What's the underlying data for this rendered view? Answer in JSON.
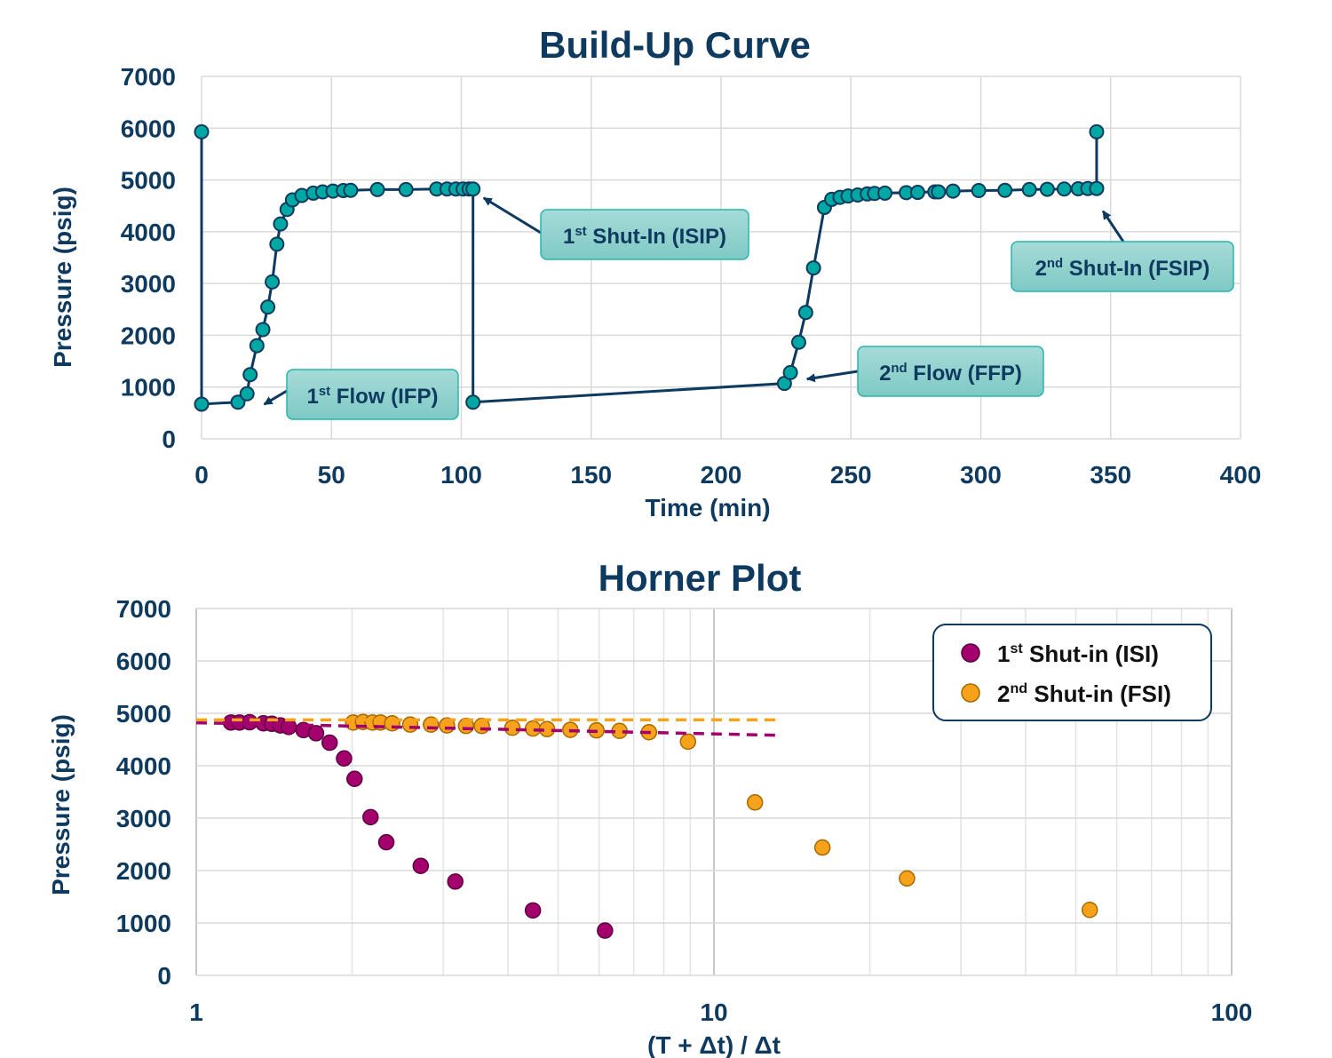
{
  "colors": {
    "navy": "#0e3a5f",
    "teal": "#00a8a3",
    "purple": "#a3006d",
    "orange": "#f7a21b",
    "callout_fill": "#93d2cf",
    "callout_border": "#2ab5ad",
    "grid": "#d9d9d9"
  },
  "chart_data": [
    {
      "type": "line",
      "title": "Build-Up Curve",
      "xlabel": "Time (min)",
      "ylabel": "Pressure (psig)",
      "xlim": [
        0,
        400
      ],
      "ylim": [
        0,
        7000
      ],
      "xticks": [
        "0",
        "50",
        "100",
        "150",
        "200",
        "250",
        "300",
        "350",
        "400"
      ],
      "yticks": [
        "0",
        "1000",
        "2000",
        "3000",
        "4000",
        "5000",
        "6000",
        "7000"
      ],
      "grid": true,
      "marker": "circle",
      "series": [
        {
          "x": [
            0,
            0,
            14,
            17.5,
            18.7,
            21.3,
            23.6,
            25.5,
            27.2,
            29,
            30.4,
            32.9,
            35,
            38.6,
            43,
            46.6,
            50.6,
            54.6,
            57.4,
            67.7,
            78.7,
            90.5,
            94.5,
            97.9,
            100.7,
            103,
            104.5,
            104.5,
            224.4,
            226.7,
            229.9,
            232.6,
            235.6,
            239.8,
            242.6,
            245.8,
            248.9,
            252.6,
            256.3,
            259.1,
            263.1,
            271.3,
            275.7,
            282.3,
            283.7,
            289.3,
            299.2,
            309.3,
            318.7,
            325.6,
            332.1,
            337.5,
            341.2,
            344.6,
            344.6
          ],
          "y": [
            5930,
            670,
            708,
            870,
            1240,
            1800,
            2110,
            2545,
            3030,
            3760,
            4150,
            4430,
            4615,
            4700,
            4745,
            4770,
            4785,
            4795,
            4800,
            4815,
            4815,
            4825,
            4825,
            4825,
            4825,
            4825,
            4825,
            708,
            1070,
            1280,
            1865,
            2440,
            3300,
            4470,
            4625,
            4665,
            4690,
            4710,
            4730,
            4740,
            4745,
            4755,
            4760,
            4770,
            4770,
            4785,
            4795,
            4800,
            4815,
            4820,
            4825,
            4830,
            4835,
            4835,
            5930
          ]
        }
      ],
      "annotations": [
        {
          "id": "isip",
          "pre": "1",
          "sup": "st",
          "post": " Shut-In (ISIP)",
          "x": 104.5,
          "y": 4825
        },
        {
          "id": "ifp",
          "pre": "1",
          "sup": "st",
          "post": " Flow (IFP)",
          "x": 20,
          "y": 700
        },
        {
          "id": "ffp",
          "pre": "2",
          "sup": "nd",
          "post": " Flow (FFP)",
          "x": 229,
          "y": 1120
        },
        {
          "id": "fsip",
          "pre": "2",
          "sup": "nd",
          "post": " Shut-In (FSIP)",
          "x": 345,
          "y": 4640
        }
      ]
    },
    {
      "type": "scatter",
      "title": "Horner Plot",
      "xlabel": "(T + Δt) / Δt",
      "ylabel": "Pressure (psig)",
      "xscale": "log",
      "xlim": [
        1,
        100
      ],
      "ylim": [
        0,
        7000
      ],
      "xticks": [
        "1",
        "10",
        "100"
      ],
      "yticks": [
        "0",
        "1000",
        "2000",
        "3000",
        "4000",
        "5000",
        "6000",
        "7000"
      ],
      "grid": true,
      "legend": "top-right",
      "series": [
        {
          "id": "isi",
          "pre": "1",
          "sup": "st",
          "post": " Shut-in (ISI)",
          "x": [
            1.167,
            1.212,
            1.268,
            1.348,
            1.4,
            1.454,
            1.509,
            1.611,
            1.704,
            1.81,
            1.93,
            2.022,
            2.171,
            2.329,
            2.714,
            3.165,
            4.47,
            6.16
          ],
          "y": [
            4825,
            4825,
            4830,
            4810,
            4800,
            4770,
            4740,
            4680,
            4620,
            4440,
            4140,
            3750,
            3020,
            2540,
            2090,
            1790,
            1240,
            855
          ],
          "trend": {
            "x": [
              1,
              13.5
            ],
            "y": [
              4820,
              4580
            ]
          }
        },
        {
          "id": "fsi",
          "pre": "2",
          "sup": "nd",
          "post": " Shut-in (FSI)",
          "x": [
            2.01,
            2.1,
            2.19,
            2.27,
            2.39,
            2.59,
            2.84,
            3.05,
            3.32,
            3.56,
            4.08,
            4.47,
            4.76,
            5.28,
            5.93,
            6.57,
            7.49,
            8.91,
            12.0,
            16.2,
            23.6,
            53.2
          ],
          "y": [
            4825,
            4835,
            4825,
            4825,
            4810,
            4785,
            4785,
            4770,
            4760,
            4760,
            4725,
            4710,
            4700,
            4685,
            4675,
            4665,
            4640,
            4460,
            3300,
            2440,
            1850,
            1250
          ],
          "trend": {
            "x": [
              1,
              13.5
            ],
            "y": [
              4875,
              4875
            ]
          }
        }
      ]
    }
  ]
}
